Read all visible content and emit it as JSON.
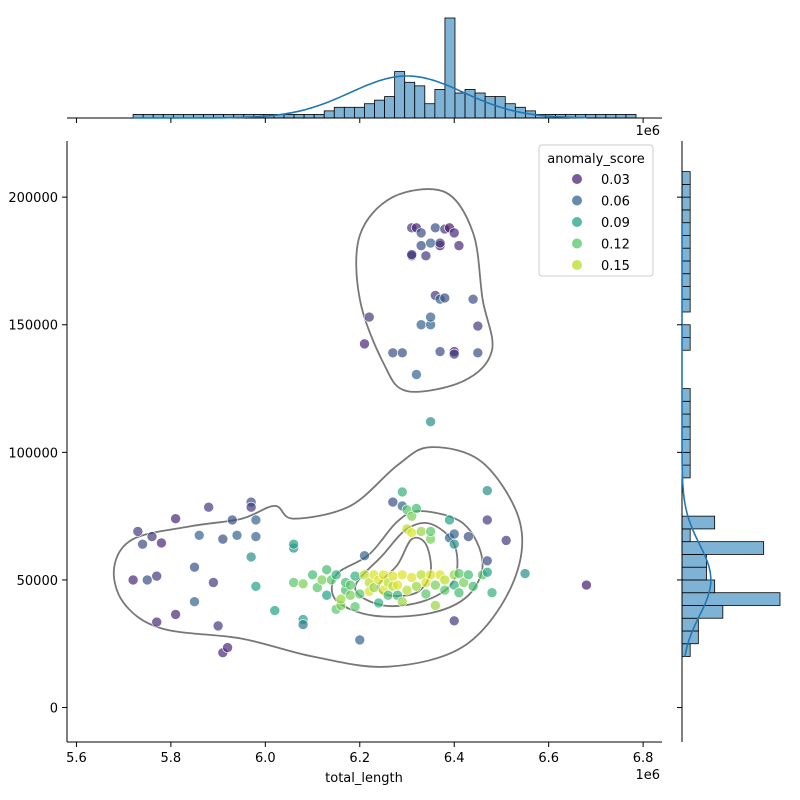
{
  "chart_data": {
    "type": "scatter",
    "title": "",
    "xlabel": "total_length",
    "ylabel": "",
    "x_offset_label": "1e6",
    "xlim": [
      5.58,
      6.84
    ],
    "ylim": [
      -13500,
      222000
    ],
    "x_ticks": [
      5.6,
      5.8,
      6.0,
      6.2,
      6.4,
      6.6,
      6.8
    ],
    "x_tick_labels": [
      "5.6",
      "5.8",
      "6.0",
      "6.2",
      "6.4",
      "6.6",
      "6.8"
    ],
    "y_ticks": [
      0,
      50000,
      100000,
      150000,
      200000
    ],
    "y_tick_labels": [
      "0",
      "50000",
      "100000",
      "150000",
      "200000"
    ],
    "grid": false,
    "legend": {
      "title": "anomaly_score",
      "placement": "top-right",
      "entries": [
        {
          "label": "0.03",
          "value": 0.03,
          "color": "#482677"
        },
        {
          "label": "0.06",
          "value": 0.06,
          "color": "#33638d"
        },
        {
          "label": "0.09",
          "value": 0.09,
          "color": "#20a386"
        },
        {
          "label": "0.12",
          "value": 0.12,
          "color": "#55c667"
        },
        {
          "label": "0.15",
          "value": 0.15,
          "color": "#b8de29"
        }
      ]
    },
    "hue_range": [
      0.0,
      0.17
    ],
    "points": [
      [
        5.73,
        69000,
        0.04
      ],
      [
        5.74,
        64000,
        0.05
      ],
      [
        5.76,
        67000,
        0.04
      ],
      [
        5.78,
        64500,
        0.03
      ],
      [
        5.72,
        50000,
        0.03
      ],
      [
        5.75,
        50000,
        0.05
      ],
      [
        5.77,
        51500,
        0.04
      ],
      [
        5.77,
        33500,
        0.03
      ],
      [
        5.81,
        74000,
        0.03
      ],
      [
        5.81,
        36500,
        0.03
      ],
      [
        5.85,
        55000,
        0.05
      ],
      [
        5.86,
        67500,
        0.06
      ],
      [
        5.85,
        41500,
        0.06
      ],
      [
        5.88,
        78500,
        0.04
      ],
      [
        5.89,
        49000,
        0.04
      ],
      [
        5.9,
        32000,
        0.04
      ],
      [
        5.91,
        66000,
        0.05
      ],
      [
        5.93,
        73500,
        0.05
      ],
      [
        5.94,
        67500,
        0.06
      ],
      [
        5.97,
        80500,
        0.05
      ],
      [
        5.97,
        78500,
        0.04
      ],
      [
        5.98,
        73500,
        0.06
      ],
      [
        5.98,
        67000,
        0.06
      ],
      [
        5.97,
        59000,
        0.08
      ],
      [
        5.98,
        47500,
        0.09
      ],
      [
        5.91,
        21500,
        0.03
      ],
      [
        5.92,
        23500,
        0.03
      ],
      [
        6.02,
        38000,
        0.09
      ],
      [
        6.06,
        62500,
        0.08
      ],
      [
        6.06,
        64000,
        0.09
      ],
      [
        6.06,
        49000,
        0.12
      ],
      [
        6.08,
        48500,
        0.13
      ],
      [
        6.08,
        34500,
        0.09
      ],
      [
        6.08,
        32500,
        0.07
      ],
      [
        6.1,
        52000,
        0.11
      ],
      [
        6.11,
        47000,
        0.12
      ],
      [
        6.12,
        50000,
        0.13
      ],
      [
        6.13,
        54000,
        0.11
      ],
      [
        6.13,
        44000,
        0.09
      ],
      [
        6.14,
        50000,
        0.12
      ],
      [
        6.15,
        52000,
        0.1
      ],
      [
        6.15,
        38500,
        0.12
      ],
      [
        6.16,
        40000,
        0.13
      ],
      [
        6.16,
        42500,
        0.14
      ],
      [
        6.17,
        46000,
        0.11
      ],
      [
        6.17,
        49000,
        0.11
      ],
      [
        6.18,
        44000,
        0.13
      ],
      [
        6.18,
        48000,
        0.12
      ],
      [
        6.19,
        51500,
        0.1
      ],
      [
        6.19,
        39500,
        0.12
      ],
      [
        6.2,
        26500,
        0.06
      ],
      [
        6.2,
        44500,
        0.12
      ],
      [
        6.21,
        52000,
        0.15
      ],
      [
        6.21,
        59500,
        0.06
      ],
      [
        6.22,
        49000,
        0.15
      ],
      [
        6.22,
        45500,
        0.16
      ],
      [
        6.23,
        52000,
        0.16
      ],
      [
        6.23,
        47000,
        0.14
      ],
      [
        6.24,
        50000,
        0.16
      ],
      [
        6.24,
        41000,
        0.1
      ],
      [
        6.25,
        52000,
        0.16
      ],
      [
        6.25,
        46000,
        0.16
      ],
      [
        6.26,
        49000,
        0.15
      ],
      [
        6.26,
        44000,
        0.11
      ],
      [
        6.27,
        51500,
        0.16
      ],
      [
        6.27,
        47500,
        0.15
      ],
      [
        6.27,
        80500,
        0.05
      ],
      [
        6.28,
        48000,
        0.16
      ],
      [
        6.28,
        44000,
        0.1
      ],
      [
        6.29,
        52000,
        0.16
      ],
      [
        6.29,
        41500,
        0.14
      ],
      [
        6.29,
        79000,
        0.06
      ],
      [
        6.29,
        84500,
        0.1
      ],
      [
        6.3,
        77500,
        0.12
      ],
      [
        6.3,
        70000,
        0.15
      ],
      [
        6.3,
        46000,
        0.15
      ],
      [
        6.31,
        75000,
        0.13
      ],
      [
        6.31,
        68500,
        0.16
      ],
      [
        6.31,
        51000,
        0.16
      ],
      [
        6.32,
        47500,
        0.14
      ],
      [
        6.32,
        78000,
        0.11
      ],
      [
        6.33,
        52000,
        0.15
      ],
      [
        6.33,
        69000,
        0.14
      ],
      [
        6.34,
        49000,
        0.16
      ],
      [
        6.34,
        44500,
        0.12
      ],
      [
        6.35,
        52000,
        0.16
      ],
      [
        6.35,
        66000,
        0.13
      ],
      [
        6.35,
        69000,
        0.12
      ],
      [
        6.36,
        40000,
        0.14
      ],
      [
        6.36,
        48000,
        0.13
      ],
      [
        6.37,
        52000,
        0.16
      ],
      [
        6.38,
        46000,
        0.12
      ],
      [
        6.38,
        50000,
        0.15
      ],
      [
        6.39,
        66500,
        0.06
      ],
      [
        6.39,
        73500,
        0.09
      ],
      [
        6.4,
        52000,
        0.14
      ],
      [
        6.4,
        48000,
        0.1
      ],
      [
        6.4,
        64000,
        0.08
      ],
      [
        6.4,
        68000,
        0.06
      ],
      [
        6.41,
        45000,
        0.11
      ],
      [
        6.41,
        52500,
        0.12
      ],
      [
        6.42,
        49000,
        0.13
      ],
      [
        6.43,
        67000,
        0.05
      ],
      [
        6.43,
        52000,
        0.11
      ],
      [
        6.44,
        47500,
        0.11
      ],
      [
        6.46,
        52000,
        0.12
      ],
      [
        6.47,
        53000,
        0.09
      ],
      [
        6.47,
        73500,
        0.04
      ],
      [
        6.47,
        57500,
        0.05
      ],
      [
        6.47,
        85000,
        0.08
      ],
      [
        6.48,
        45000,
        0.1
      ],
      [
        6.51,
        65500,
        0.04
      ],
      [
        6.55,
        52500,
        0.08
      ],
      [
        6.4,
        34000,
        0.04
      ],
      [
        6.68,
        48000,
        0.02
      ],
      [
        6.35,
        112000,
        0.08
      ],
      [
        6.31,
        188000,
        0.04
      ],
      [
        6.32,
        188000,
        0.03
      ],
      [
        6.33,
        186000,
        0.05
      ],
      [
        6.35,
        182000,
        0.06
      ],
      [
        6.36,
        188000,
        0.05
      ],
      [
        6.37,
        181000,
        0.02
      ],
      [
        6.37,
        182000,
        0.04
      ],
      [
        6.38,
        187500,
        0.04
      ],
      [
        6.39,
        188000,
        0.02
      ],
      [
        6.4,
        186000,
        0.03
      ],
      [
        6.41,
        181000,
        0.03
      ],
      [
        6.33,
        181000,
        0.05
      ],
      [
        6.31,
        177000,
        0.02
      ],
      [
        6.31,
        177500,
        0.04
      ],
      [
        6.34,
        177000,
        0.04
      ],
      [
        6.36,
        161500,
        0.04
      ],
      [
        6.37,
        160000,
        0.06
      ],
      [
        6.38,
        160500,
        0.05
      ],
      [
        6.44,
        160000,
        0.05
      ],
      [
        6.22,
        153000,
        0.04
      ],
      [
        6.33,
        150000,
        0.06
      ],
      [
        6.35,
        150000,
        0.06
      ],
      [
        6.35,
        153000,
        0.06
      ],
      [
        6.45,
        149500,
        0.04
      ],
      [
        6.21,
        142500,
        0.03
      ],
      [
        6.27,
        139000,
        0.05
      ],
      [
        6.29,
        139000,
        0.05
      ],
      [
        6.37,
        139500,
        0.05
      ],
      [
        6.4,
        139500,
        0.02
      ],
      [
        6.4,
        138500,
        0.04
      ],
      [
        6.45,
        139000,
        0.05
      ],
      [
        6.32,
        130500,
        0.06
      ]
    ],
    "kde_contours": [
      [
        [
          6.1,
          20000
        ],
        [
          5.95,
          27000
        ],
        [
          5.78,
          31000
        ],
        [
          5.7,
          41000
        ],
        [
          5.68,
          55000
        ],
        [
          5.72,
          66000
        ],
        [
          5.84,
          71000
        ],
        [
          5.95,
          74000
        ],
        [
          6.02,
          79000
        ],
        [
          6.06,
          74000
        ],
        [
          6.18,
          79000
        ],
        [
          6.28,
          95000
        ],
        [
          6.35,
          102000
        ],
        [
          6.46,
          96000
        ],
        [
          6.54,
          72000
        ],
        [
          6.52,
          47000
        ],
        [
          6.42,
          24000
        ],
        [
          6.26,
          16000
        ],
        [
          6.1,
          20000
        ]
      ],
      [
        [
          6.15,
          42000
        ],
        [
          6.15,
          52000
        ],
        [
          6.22,
          60000
        ],
        [
          6.28,
          73000
        ],
        [
          6.33,
          77000
        ],
        [
          6.42,
          72000
        ],
        [
          6.46,
          57000
        ],
        [
          6.43,
          44000
        ],
        [
          6.35,
          37000
        ],
        [
          6.23,
          36000
        ],
        [
          6.15,
          42000
        ]
      ],
      [
        [
          6.19,
          47000
        ],
        [
          6.25,
          60000
        ],
        [
          6.3,
          70000
        ],
        [
          6.35,
          72000
        ],
        [
          6.4,
          64000
        ],
        [
          6.4,
          50000
        ],
        [
          6.34,
          42000
        ],
        [
          6.25,
          40000
        ],
        [
          6.19,
          47000
        ]
      ],
      [
        [
          6.24,
          48000
        ],
        [
          6.28,
          56000
        ],
        [
          6.31,
          66000
        ],
        [
          6.34,
          64000
        ],
        [
          6.35,
          53000
        ],
        [
          6.32,
          45000
        ],
        [
          6.26,
          44000
        ],
        [
          6.24,
          48000
        ]
      ],
      [
        [
          6.25,
          135000
        ],
        [
          6.2,
          160000
        ],
        [
          6.2,
          185000
        ],
        [
          6.27,
          200000
        ],
        [
          6.38,
          202000
        ],
        [
          6.44,
          186000
        ],
        [
          6.46,
          160000
        ],
        [
          6.48,
          140000
        ],
        [
          6.42,
          128000
        ],
        [
          6.3,
          124000
        ],
        [
          6.25,
          135000
        ]
      ]
    ],
    "x_hist": {
      "bin_width": 0.0213,
      "start": 5.72,
      "counts": [
        1,
        1,
        1,
        1,
        1,
        1,
        1,
        1,
        1,
        1,
        1,
        1,
        1,
        1,
        1,
        1,
        1,
        1,
        1,
        2,
        3,
        3,
        3,
        4,
        5,
        6,
        13,
        10,
        9,
        4,
        8,
        28,
        7,
        8,
        7,
        6,
        6,
        4,
        3,
        2,
        1,
        1,
        1,
        1,
        1,
        1,
        1,
        1,
        1,
        1
      ],
      "kde_peak_x": 6.3
    },
    "y_hist": {
      "bin_width": 5000,
      "start": 20000,
      "counts": [
        1,
        2,
        2,
        5,
        12,
        4,
        3,
        3,
        10,
        1,
        4,
        0,
        0,
        0,
        1,
        1,
        1,
        1,
        1,
        1,
        1,
        0,
        0,
        0,
        1,
        1,
        0,
        1,
        1,
        1,
        1,
        1,
        1,
        1,
        1,
        1,
        1,
        1
      ],
      "kde_peak_y": 50000
    }
  }
}
